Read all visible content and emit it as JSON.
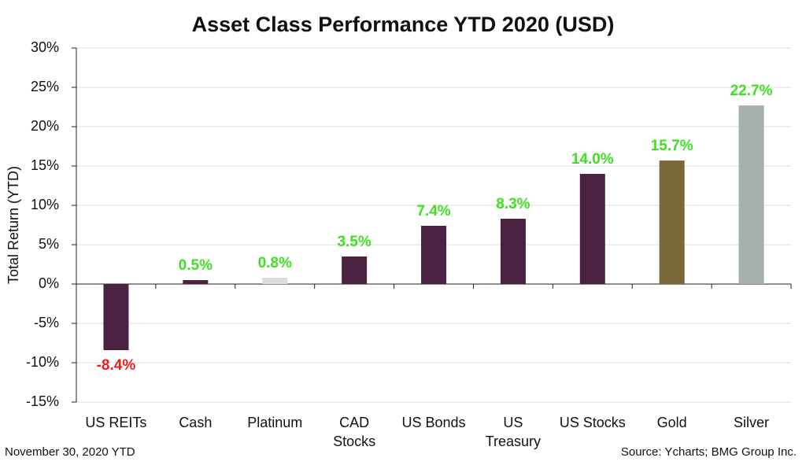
{
  "chart_data": {
    "type": "bar",
    "title": "Asset Class Performance YTD 2020 (USD)",
    "y_label": "Total Return (YTD)",
    "categories": [
      "US REITs",
      "Cash",
      "Platinum",
      "CAD\nStocks",
      "US Bonds",
      "US\nTreasury",
      "US Stocks",
      "Gold",
      "Silver"
    ],
    "values": [
      -8.4,
      0.5,
      0.8,
      3.5,
      7.4,
      8.3,
      14.0,
      15.7,
      22.7
    ],
    "value_labels": [
      "-8.4%",
      "0.5%",
      "0.8%",
      "3.5%",
      "7.4%",
      "8.3%",
      "14.0%",
      "15.7%",
      "22.7%"
    ],
    "colors": [
      "#4a2141",
      "#4a2141",
      "#dcdcdc",
      "#4a2141",
      "#4a2141",
      "#4a2141",
      "#4a2141",
      "#7b6838",
      "#a5afae"
    ],
    "positive_label_color": "#3ee01f",
    "negative_label_color": "#ee1c1c",
    "ylim": [
      -15,
      30
    ],
    "yticks": [
      {
        "value": -15,
        "label": "-15%"
      },
      {
        "value": -10,
        "label": "-10%"
      },
      {
        "value": -5,
        "label": "-5%"
      },
      {
        "value": 0,
        "label": "0%"
      },
      {
        "value": 5,
        "label": "5%"
      },
      {
        "value": 10,
        "label": "10%"
      },
      {
        "value": 15,
        "label": "15%"
      },
      {
        "value": 20,
        "label": "20%"
      },
      {
        "value": 25,
        "label": "25%"
      },
      {
        "value": 30,
        "label": "30%"
      }
    ],
    "grid": true,
    "date_note": "November 30, 2020 YTD",
    "source": "Source: Ycharts; BMG Group Inc."
  }
}
